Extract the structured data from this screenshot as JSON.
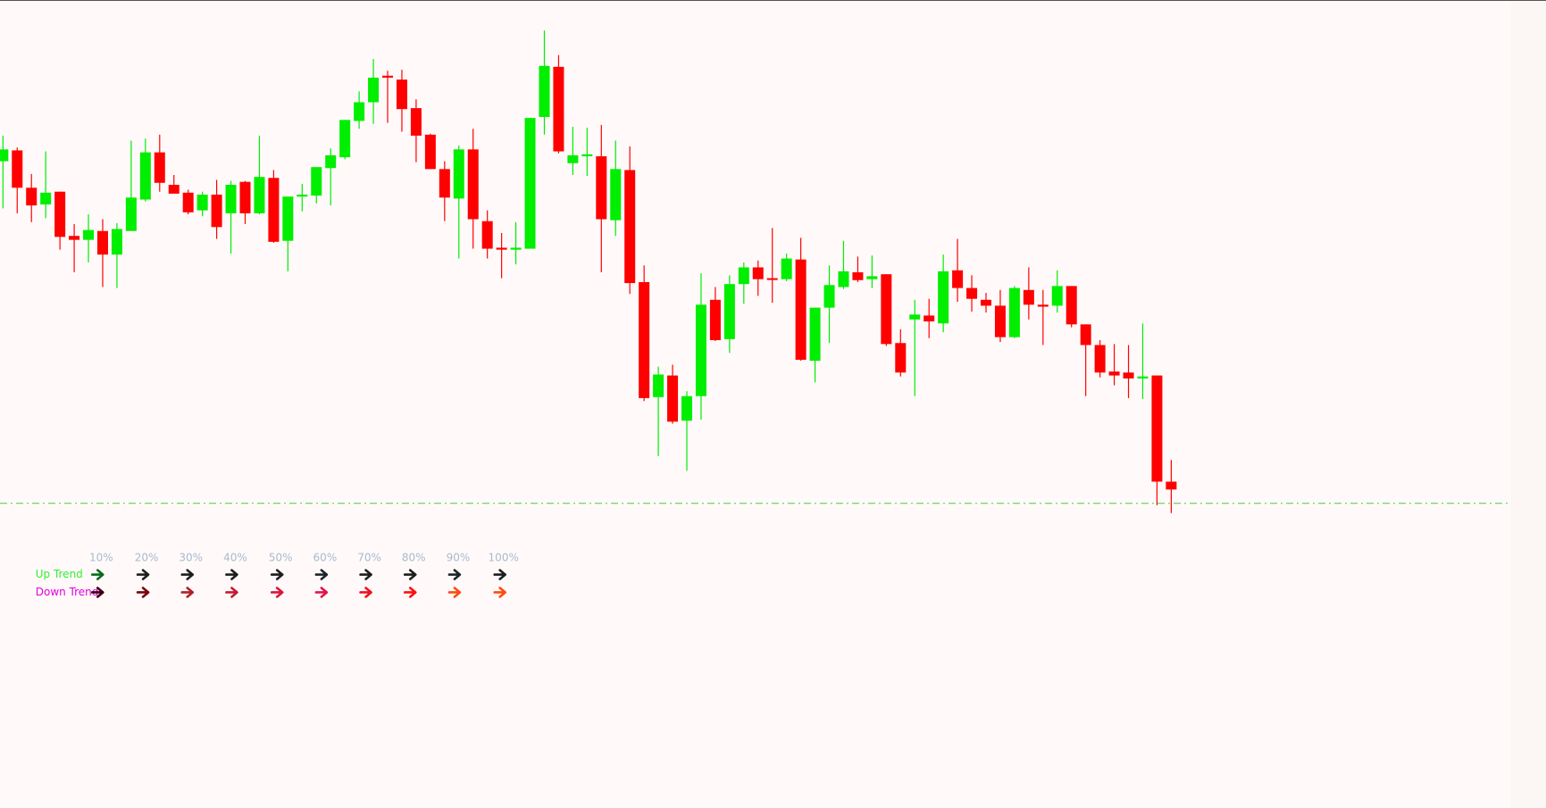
{
  "chart_data": {
    "type": "candlestick",
    "open": [
      658,
      669,
      631,
      614,
      627,
      582,
      578,
      587,
      563,
      587,
      619,
      667,
      634,
      626,
      608,
      624,
      605,
      637,
      605,
      641,
      577,
      622,
      623,
      651,
      662,
      699,
      718,
      745,
      741,
      712,
      685,
      650,
      620,
      670,
      597,
      570,
      568,
      569,
      703,
      754,
      656,
      663,
      663,
      598,
      649,
      535,
      418,
      440,
      394,
      419,
      517,
      477,
      533,
      550,
      539,
      538,
      558,
      455,
      509,
      530,
      545,
      538,
      543,
      473,
      497,
      501,
      493,
      547,
      529,
      517,
      511,
      479,
      527,
      512,
      511,
      531,
      492,
      471,
      444,
      443,
      437,
      440,
      332
    ],
    "high": [
      684,
      672,
      645,
      668,
      627,
      594,
      604,
      599,
      595,
      679,
      681,
      685,
      644,
      629,
      627,
      639,
      638,
      638,
      684,
      649,
      622,
      635,
      652,
      671,
      700,
      729,
      762,
      750,
      751,
      721,
      686,
      658,
      674,
      691,
      608,
      585,
      596,
      702,
      791,
      766,
      693,
      692,
      695,
      679,
      673,
      552,
      449,
      451,
      424,
      544,
      530,
      542,
      555,
      557,
      590,
      564,
      580,
      509,
      552,
      577,
      561,
      562,
      543,
      487,
      517,
      518,
      563,
      579,
      542,
      524,
      527,
      531,
      550,
      527,
      547,
      531,
      492,
      476,
      472,
      471,
      493,
      440,
      354
    ],
    "low": [
      610,
      605,
      596,
      600,
      568,
      545,
      555,
      530,
      529,
      587,
      617,
      627,
      625,
      604,
      602,
      579,
      564,
      594,
      604,
      575,
      546,
      607,
      615,
      613,
      660,
      691,
      696,
      697,
      688,
      657,
      650,
      597,
      559,
      569,
      559,
      539,
      553,
      569,
      685,
      666,
      644,
      643,
      545,
      582,
      523,
      414,
      358,
      391,
      343,
      395,
      475,
      463,
      513,
      521,
      514,
      536,
      455,
      433,
      473,
      528,
      535,
      529,
      470,
      439,
      419,
      478,
      484,
      515,
      505,
      504,
      474,
      478,
      497,
      471,
      504,
      489,
      419,
      438,
      430,
      417,
      416,
      308,
      300
    ],
    "close": [
      670,
      631,
      613,
      626,
      581,
      578,
      588,
      563,
      589,
      621,
      667,
      636,
      625,
      606,
      624,
      591,
      634,
      605,
      642,
      576,
      622,
      624,
      652,
      664,
      700,
      718,
      743,
      743,
      711,
      684,
      650,
      621,
      670,
      599,
      569,
      568,
      570,
      702,
      755,
      668,
      664,
      665,
      599,
      650,
      534,
      417,
      441,
      393,
      419,
      512,
      476,
      533,
      550,
      538,
      538,
      559,
      456,
      509,
      532,
      546,
      537,
      541,
      472,
      443,
      502,
      495,
      546,
      529,
      518,
      511,
      479,
      529,
      512,
      510,
      531,
      492,
      471,
      443,
      440,
      437,
      439,
      332,
      324
    ],
    "up_color": "#00ee00",
    "down_color": "#ff0000",
    "ylim": [
      0,
      822
    ],
    "level": 310,
    "level_color": "#44cc44"
  },
  "legend_table": {
    "headers": [
      "10%",
      "20%",
      "30%",
      "40%",
      "50%",
      "60%",
      "70%",
      "80%",
      "90%",
      "100%"
    ],
    "header_color": "#a9b8d0",
    "rows": [
      {
        "label": "Up Trend",
        "color": "#33ee33",
        "arrow_colors": [
          "#0b6b1e",
          "#1e1e1e",
          "#1e1e1e",
          "#1e1e1e",
          "#1e1e1e",
          "#1e2428",
          "#1e1e1e",
          "#1e1e1e",
          "#1e2428",
          "#1e1e1e"
        ]
      },
      {
        "label": "Down Trend",
        "color": "#e000e0",
        "arrow_colors": [
          "#3a0010",
          "#7a0010",
          "#b01e2a",
          "#c41c32",
          "#d8143c",
          "#e0144a",
          "#f01020",
          "#ff1010",
          "#ff4a10",
          "#ff4a10"
        ]
      }
    ]
  }
}
